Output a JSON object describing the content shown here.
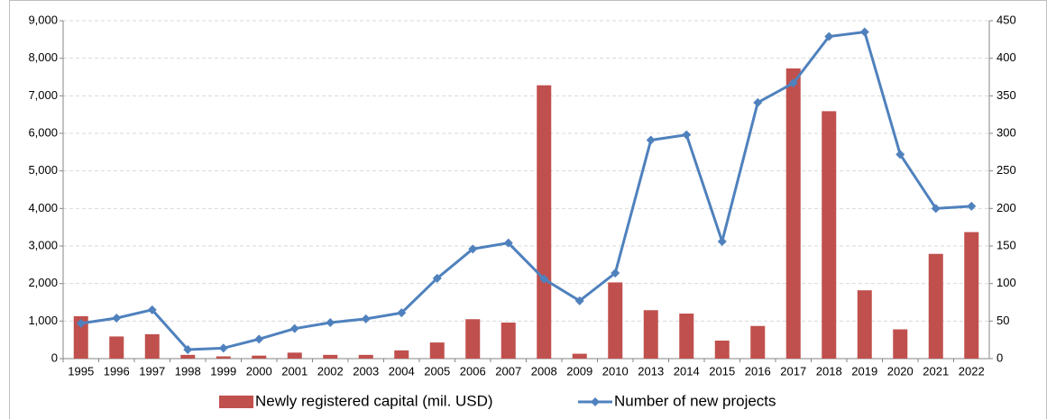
{
  "chart_data": {
    "type": "bar_line",
    "categories": [
      "1995",
      "1996",
      "1997",
      "1998",
      "1999",
      "2000",
      "2001",
      "2002",
      "2003",
      "2004",
      "2005",
      "2006",
      "2007",
      "2008",
      "2009",
      "2010",
      "2013",
      "2014",
      "2015",
      "2016",
      "2017",
      "2018",
      "2019",
      "2020",
      "2021",
      "2022"
    ],
    "series": [
      {
        "name": "Newly registered capital (mil. USD)",
        "type": "bar",
        "color": "#c0504d",
        "values": [
          1130,
          590,
          650,
          100,
          60,
          80,
          160,
          100,
          100,
          220,
          430,
          1050,
          960,
          7280,
          130,
          2030,
          1290,
          1200,
          480,
          870,
          7730,
          6590,
          1820,
          780,
          2790,
          3370
        ]
      },
      {
        "name": "Number of new projects",
        "type": "line",
        "color": "#4f81bd",
        "axis": "y2",
        "values": [
          47,
          54,
          65,
          12,
          14,
          26,
          40,
          48,
          53,
          61,
          107,
          146,
          154,
          106,
          77,
          114,
          291,
          298,
          156,
          341,
          367,
          429,
          435,
          272,
          200,
          203
        ]
      }
    ],
    "ylim": [
      0,
      9000
    ],
    "yticks": [
      0,
      {
        "value": 1000,
        "label": "1,000"
      },
      {
        "value": 2000,
        "label": "2,000"
      },
      {
        "value": 3000,
        "label": "3,000"
      },
      {
        "value": 4000,
        "label": "4,000"
      },
      {
        "value": 5000,
        "label": "5,000"
      },
      {
        "value": 6000,
        "label": "6,000"
      },
      {
        "value": 7000,
        "label": "7,000"
      },
      {
        "value": 8000,
        "label": "8,000"
      },
      {
        "value": 9000,
        "label": "9,000"
      }
    ],
    "y2lim": [
      0,
      450
    ],
    "y2ticks": [
      0,
      50,
      100,
      150,
      200,
      250,
      300,
      350,
      400,
      450
    ],
    "grid": true,
    "legend": "bottom"
  }
}
